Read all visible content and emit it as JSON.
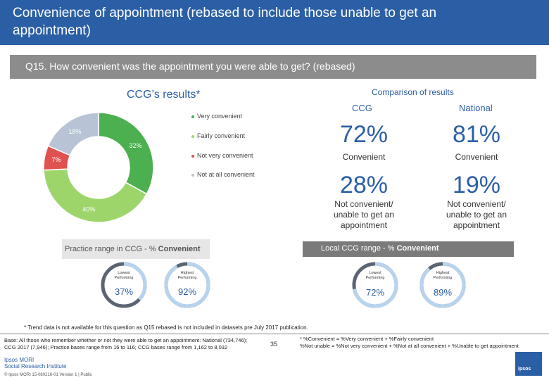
{
  "header": {
    "title": "Convenience of appointment (rebased to include those unable to get an appointment)",
    "question": "Q15. How convenient was the appointment you were able to get? (rebased)"
  },
  "colors": {
    "blue": "#2b5fa5",
    "green_dark": "#4caf50",
    "green_light": "#9ed56b",
    "grey_blue": "#b8c4d6",
    "red": "#e05252"
  },
  "chart_data": [
    {
      "type": "pie",
      "title": "CCG’s results*",
      "categories": [
        "Very convenient",
        "Fairly convenient",
        "Not very convenient",
        "Not at all convenient"
      ],
      "values": [
        32,
        40,
        7,
        18
      ],
      "colors": [
        "#4caf50",
        "#9ed56b",
        "#e05252",
        "#b8c4d6"
      ],
      "labels": [
        "32%",
        "40%",
        "7%",
        "18%"
      ],
      "legend": "right"
    }
  ],
  "comparison": {
    "title": "Comparison of results",
    "col_ccg": "CCG",
    "col_national": "National",
    "conv_ccg": "72%",
    "conv_nat": "81%",
    "conv_label": "Convenient",
    "notconv_ccg": "28%",
    "notconv_nat": "19%",
    "notconv_label": "Not convenient/ unable to get an appointment"
  },
  "practice_range": {
    "title_prefix": "Practice range in CCG - % ",
    "title_bold": "Convenient",
    "lowest_caption": "Lowest Performing",
    "lowest_value": "37%",
    "lowest_fraction": 0.37,
    "highest_caption": "Highest Performing",
    "highest_value": "92%",
    "highest_fraction": 0.92
  },
  "local_range": {
    "title_prefix": "Local CCG range - % ",
    "title_bold": "Convenient",
    "lowest_caption": "Lowest Performing",
    "lowest_value": "72%",
    "lowest_fraction": 0.72,
    "highest_caption": "Highest Performing",
    "highest_value": "89%",
    "highest_fraction": 0.89
  },
  "footer": {
    "footnote": "* Trend data is not available for this question as Q15 rebased is not included in datasets pre July 2017 publication.",
    "base_line1": "Base: All those who remember whether or not they were able to get an appointment: National (734,746);",
    "base_line2": "CCG 2017 (7,946); Practice bases range from 16 to 116; CCG bases range from 1,162 to 8,032",
    "def_line1": "* %Convenient = %Very convenient + %Fairly convenient",
    "def_line2": "%Not unable = %Not very convenient + %Not at all convenient + %Unable to get appointment",
    "page": "35",
    "ipsos_line1": "Ipsos MORI",
    "ipsos_line2": "Social Research Institute",
    "copyright": "© Ipsos MORI     15-080216-01 Version 1 | Public",
    "logo": "ipsos"
  }
}
